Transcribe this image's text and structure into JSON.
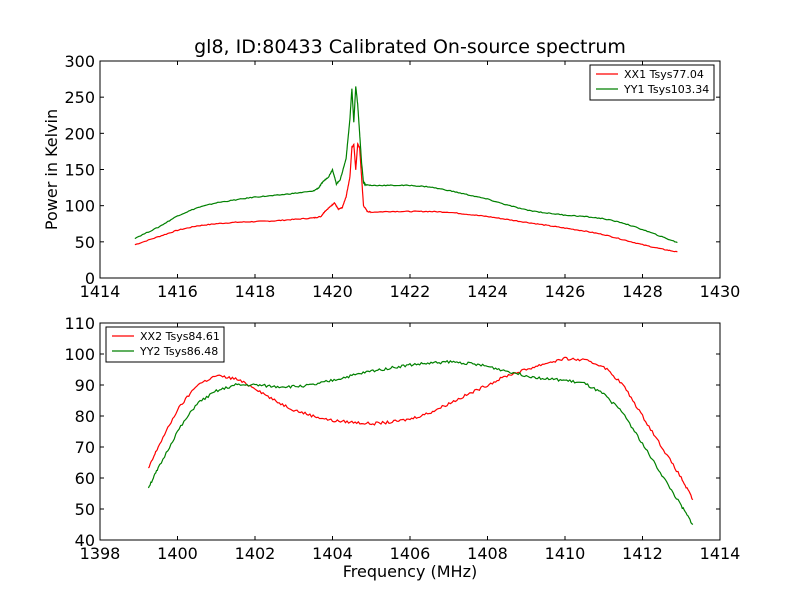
{
  "title": "gl8, ID:80433 Calibrated On-source spectrum",
  "chart_data": [
    {
      "type": "line",
      "title": "gl8, ID:80433 Calibrated On-source spectrum",
      "xlabel": "",
      "ylabel": "Power in Kelvin",
      "xlim": [
        1414,
        1430
      ],
      "ylim": [
        0,
        300
      ],
      "xticks": [
        1414,
        1416,
        1418,
        1420,
        1422,
        1424,
        1426,
        1428,
        1430
      ],
      "yticks": [
        0,
        50,
        100,
        150,
        200,
        250,
        300
      ],
      "legend_position": "top-right",
      "series": [
        {
          "name": "XX1 Tsys77.04",
          "color": "#ff0000",
          "x": [
            1414.9,
            1415.5,
            1416.0,
            1416.5,
            1417.0,
            1417.5,
            1418.0,
            1418.5,
            1419.0,
            1419.5,
            1419.7,
            1419.8,
            1419.95,
            1420.05,
            1420.15,
            1420.25,
            1420.35,
            1420.45,
            1420.5,
            1420.55,
            1420.6,
            1420.65,
            1420.7,
            1420.75,
            1420.8,
            1420.9,
            1421.0,
            1421.5,
            1422.0,
            1422.5,
            1423.0,
            1423.5,
            1424.0,
            1424.5,
            1425.0,
            1425.5,
            1426.0,
            1426.5,
            1427.0,
            1427.5,
            1428.0,
            1428.5,
            1428.9
          ],
          "values": [
            46,
            57,
            66,
            72,
            75,
            77,
            78,
            79,
            81,
            83,
            85,
            92,
            99,
            104,
            95,
            97,
            112,
            140,
            180,
            185,
            150,
            185,
            180,
            140,
            100,
            92,
            91,
            92,
            92,
            92,
            91,
            88,
            85,
            81,
            77,
            73,
            69,
            65,
            60,
            53,
            46,
            40,
            36
          ]
        },
        {
          "name": "YY1 Tsys103.34",
          "color": "#008000",
          "x": [
            1414.9,
            1415.5,
            1416.0,
            1416.5,
            1417.0,
            1417.5,
            1418.0,
            1418.5,
            1419.0,
            1419.5,
            1419.65,
            1419.75,
            1419.9,
            1420.0,
            1420.1,
            1420.2,
            1420.35,
            1420.45,
            1420.5,
            1420.55,
            1420.6,
            1420.65,
            1420.7,
            1420.75,
            1420.8,
            1420.85,
            1421.0,
            1421.5,
            1422.0,
            1422.5,
            1423.0,
            1423.5,
            1424.0,
            1424.5,
            1425.0,
            1425.5,
            1426.0,
            1426.5,
            1427.0,
            1427.5,
            1428.0,
            1428.5,
            1428.9
          ],
          "values": [
            55,
            70,
            86,
            97,
            104,
            108,
            112,
            114,
            117,
            120,
            125,
            133,
            140,
            150,
            130,
            136,
            165,
            220,
            262,
            215,
            265,
            240,
            200,
            160,
            132,
            129,
            128,
            128,
            128,
            126,
            121,
            115,
            109,
            101,
            94,
            90,
            87,
            85,
            82,
            76,
            67,
            57,
            49
          ]
        }
      ]
    },
    {
      "type": "line",
      "title": "",
      "xlabel": "Frequency (MHz)",
      "ylabel": "",
      "xlim": [
        1398,
        1414
      ],
      "ylim": [
        40,
        110
      ],
      "xticks": [
        1398,
        1400,
        1402,
        1404,
        1406,
        1408,
        1410,
        1412,
        1414
      ],
      "yticks": [
        40,
        50,
        60,
        70,
        80,
        90,
        100,
        110
      ],
      "legend_position": "top-left",
      "series": [
        {
          "name": "XX2 Tsys84.61",
          "color": "#ff0000",
          "x": [
            1399.25,
            1399.5,
            1400.0,
            1400.5,
            1401.0,
            1401.5,
            1402.0,
            1402.5,
            1403.0,
            1403.5,
            1404.0,
            1404.5,
            1405.0,
            1405.5,
            1406.0,
            1406.5,
            1407.0,
            1407.5,
            1408.0,
            1408.5,
            1409.0,
            1409.5,
            1410.0,
            1410.5,
            1411.0,
            1411.5,
            1412.0,
            1412.5,
            1413.0,
            1413.3
          ],
          "values": [
            63,
            70,
            82,
            90,
            93,
            92,
            89,
            85,
            82,
            80,
            78.5,
            78,
            77.5,
            78,
            79,
            81,
            84,
            87,
            90,
            93,
            95,
            97,
            98.5,
            98,
            96,
            90,
            80,
            70,
            60,
            53
          ]
        },
        {
          "name": "YY2 Tsys86.48",
          "color": "#008000",
          "x": [
            1399.25,
            1399.5,
            1400.0,
            1400.5,
            1401.0,
            1401.5,
            1402.0,
            1402.5,
            1403.0,
            1403.5,
            1404.0,
            1404.5,
            1405.0,
            1405.5,
            1406.0,
            1406.5,
            1407.0,
            1407.5,
            1408.0,
            1408.5,
            1409.0,
            1409.5,
            1410.0,
            1410.5,
            1411.0,
            1411.5,
            1412.0,
            1412.5,
            1413.0,
            1413.3
          ],
          "values": [
            57,
            63,
            75,
            84,
            88,
            90,
            90,
            89.5,
            89.5,
            90,
            91.5,
            93,
            94.5,
            95.5,
            96.5,
            97,
            97.5,
            97,
            96,
            94.5,
            93,
            92,
            91.5,
            90.5,
            87,
            81,
            71,
            61,
            51,
            45
          ]
        }
      ]
    }
  ]
}
